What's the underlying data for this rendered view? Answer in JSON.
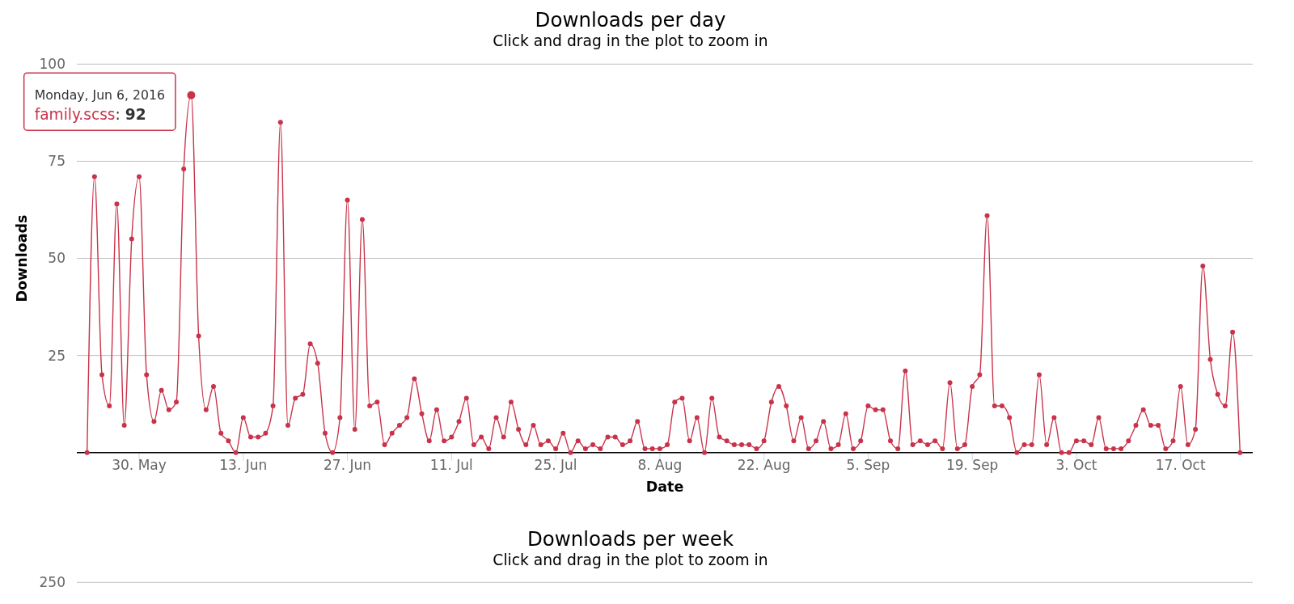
{
  "chart_data": [
    {
      "type": "line",
      "title": "Downloads per day",
      "subtitle": "Click and drag in the plot to zoom in",
      "xlabel": "Date",
      "ylabel": "Downloads",
      "x": [
        "2016-05-23",
        "2016-05-24",
        "2016-05-25",
        "2016-05-26",
        "2016-05-27",
        "2016-05-28",
        "2016-05-29",
        "2016-05-30",
        "2016-05-31",
        "2016-06-01",
        "2016-06-02",
        "2016-06-03",
        "2016-06-04",
        "2016-06-05",
        "2016-06-06",
        "2016-06-07",
        "2016-06-08",
        "2016-06-09",
        "2016-06-10",
        "2016-06-11",
        "2016-06-12",
        "2016-06-13",
        "2016-06-14",
        "2016-06-15",
        "2016-06-16",
        "2016-06-17",
        "2016-06-18",
        "2016-06-19",
        "2016-06-20",
        "2016-06-21",
        "2016-06-22",
        "2016-06-23",
        "2016-06-24",
        "2016-06-25",
        "2016-06-26",
        "2016-06-27",
        "2016-06-28",
        "2016-06-29",
        "2016-06-30",
        "2016-07-01",
        "2016-07-02",
        "2016-07-03",
        "2016-07-04",
        "2016-07-05",
        "2016-07-06",
        "2016-07-07",
        "2016-07-08",
        "2016-07-09",
        "2016-07-10",
        "2016-07-11",
        "2016-07-12",
        "2016-07-13",
        "2016-07-14",
        "2016-07-15",
        "2016-07-16",
        "2016-07-17",
        "2016-07-18",
        "2016-07-19",
        "2016-07-20",
        "2016-07-21",
        "2016-07-22",
        "2016-07-23",
        "2016-07-24",
        "2016-07-25",
        "2016-07-26",
        "2016-07-27",
        "2016-07-28",
        "2016-07-29",
        "2016-07-30",
        "2016-07-31",
        "2016-08-01",
        "2016-08-02",
        "2016-08-03",
        "2016-08-04",
        "2016-08-05",
        "2016-08-06",
        "2016-08-07",
        "2016-08-08",
        "2016-08-09",
        "2016-08-10",
        "2016-08-11",
        "2016-08-12",
        "2016-08-13",
        "2016-08-14",
        "2016-08-15",
        "2016-08-16",
        "2016-08-17",
        "2016-08-18",
        "2016-08-19",
        "2016-08-20",
        "2016-08-21",
        "2016-08-22",
        "2016-08-23",
        "2016-08-24",
        "2016-08-25",
        "2016-08-26",
        "2016-08-27",
        "2016-08-28",
        "2016-08-29",
        "2016-08-30",
        "2016-08-31",
        "2016-09-01",
        "2016-09-02",
        "2016-09-03",
        "2016-09-04",
        "2016-09-05",
        "2016-09-06",
        "2016-09-07",
        "2016-09-08",
        "2016-09-09",
        "2016-09-10",
        "2016-09-11",
        "2016-09-12",
        "2016-09-13",
        "2016-09-14",
        "2016-09-15",
        "2016-09-16",
        "2016-09-17",
        "2016-09-18",
        "2016-09-19",
        "2016-09-20",
        "2016-09-21",
        "2016-09-22",
        "2016-09-23",
        "2016-09-24",
        "2016-09-25",
        "2016-09-26",
        "2016-09-27",
        "2016-09-28",
        "2016-09-29",
        "2016-09-30",
        "2016-10-01",
        "2016-10-02",
        "2016-10-03",
        "2016-10-04",
        "2016-10-05",
        "2016-10-06",
        "2016-10-07",
        "2016-10-08",
        "2016-10-09",
        "2016-10-10",
        "2016-10-11",
        "2016-10-12",
        "2016-10-13",
        "2016-10-14",
        "2016-10-15",
        "2016-10-16",
        "2016-10-17",
        "2016-10-18",
        "2016-10-19",
        "2016-10-20",
        "2016-10-21",
        "2016-10-22",
        "2016-10-23",
        "2016-10-24",
        "2016-10-25"
      ],
      "series": [
        {
          "color": "#c9334a",
          "values": [
            0,
            71,
            20,
            12,
            64,
            7,
            55,
            71,
            20,
            8,
            16,
            11,
            13,
            73,
            92,
            30,
            11,
            17,
            5,
            3,
            0,
            9,
            4,
            4,
            5,
            12,
            85,
            7,
            14,
            15,
            28,
            23,
            5,
            0,
            9,
            65,
            6,
            60,
            12,
            13,
            2,
            5,
            7,
            9,
            19,
            10,
            3,
            11,
            3,
            4,
            8,
            14,
            2,
            4,
            1,
            9,
            4,
            13,
            6,
            2,
            7,
            2,
            3,
            1,
            5,
            0,
            3,
            1,
            2,
            1,
            4,
            4,
            2,
            3,
            8,
            1,
            1,
            1,
            2,
            13,
            14,
            3,
            9,
            0,
            14,
            4,
            3,
            2,
            2,
            2,
            1,
            3,
            13,
            17,
            12,
            3,
            9,
            1,
            3,
            8,
            1,
            2,
            10,
            1,
            3,
            12,
            11,
            11,
            3,
            1,
            21,
            2,
            3,
            2,
            3,
            1,
            18,
            1,
            2,
            17,
            20,
            61,
            12,
            12,
            9,
            0,
            2,
            2,
            20,
            2,
            9,
            0,
            0,
            3,
            3,
            2,
            9,
            1,
            1,
            1,
            3,
            7,
            11,
            7,
            7,
            1,
            3,
            17,
            2,
            6,
            48,
            24,
            15,
            12,
            31,
            0
          ]
        }
      ],
      "xlim": [
        "2016-05-21T15:00",
        "2016-10-26T17:00"
      ],
      "xticks": [
        {
          "value": "2016-05-30",
          "label": "30. May"
        },
        {
          "value": "2016-06-13",
          "label": "13. Jun"
        },
        {
          "value": "2016-06-27",
          "label": "27. Jun"
        },
        {
          "value": "2016-07-11",
          "label": "11. Jul"
        },
        {
          "value": "2016-07-25",
          "label": "25. Jul"
        },
        {
          "value": "2016-08-08",
          "label": "8. Aug"
        },
        {
          "value": "2016-08-22",
          "label": "22. Aug"
        },
        {
          "value": "2016-09-05",
          "label": "5. Sep"
        },
        {
          "value": "2016-09-19",
          "label": "19. Sep"
        },
        {
          "value": "2016-10-03",
          "label": "3. Oct"
        },
        {
          "value": "2016-10-17",
          "label": "17. Oct"
        }
      ],
      "ylim": [
        0,
        100
      ],
      "yticks": [
        {
          "value": 0,
          "label": null
        },
        25,
        50,
        75,
        100
      ],
      "grid": "y",
      "marker": "circle",
      "annotations": [
        {
          "text": "Monday, Jun 6, 2016\nfamily.scss: 92",
          "x": "2016-06-06",
          "y": 92
        }
      ]
    },
    {
      "type": "other",
      "title": "Downloads per week",
      "subtitle": "Click and drag in the plot to zoom in",
      "annotations": [
        "250"
      ]
    }
  ]
}
